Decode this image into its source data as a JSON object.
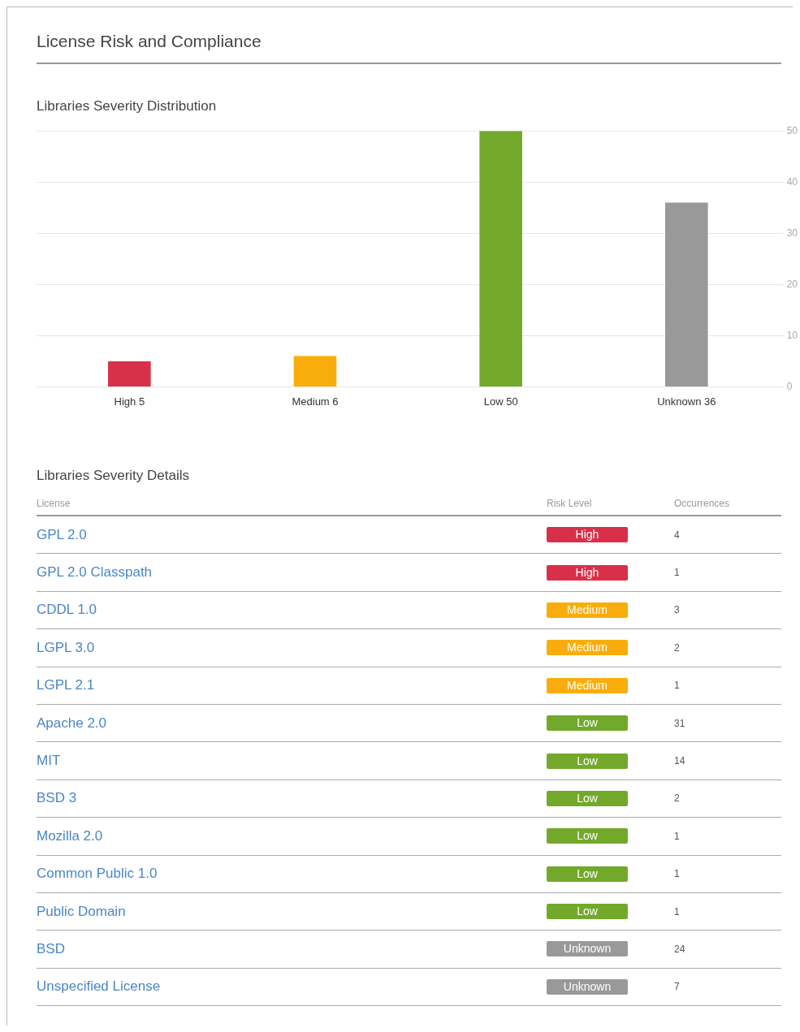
{
  "chart_data": [
    {
      "type": "bar",
      "title": "License Risk and Compliance",
      "subtitle": "Libraries Severity Distribution",
      "categories": [
        "High 5",
        "Medium 6",
        "Low 50",
        "Unknown 36"
      ],
      "values": [
        5,
        6,
        50,
        36
      ],
      "colors": [
        "#d9304a",
        "#f9ad0c",
        "#73a92b",
        "#999999"
      ],
      "ylim": [
        0,
        50
      ],
      "yticks": [
        0,
        10,
        20,
        30,
        40,
        50
      ],
      "grid": "y",
      "legend": false
    },
    {
      "type": "other",
      "title": "Libraries Severity Details",
      "annotations": [
        "License",
        "Risk Level",
        "Occurrences"
      ],
      "categories": [
        "GPL 2.0",
        "GPL 2.0 Classpath",
        "CDDL 1.0",
        "LGPL 3.0",
        "LGPL 2.1",
        "Apache 2.0",
        "MIT",
        "BSD 3",
        "Mozilla 2.0",
        "Common Public 1.0",
        "Public Domain",
        "BSD",
        "Unspecified License"
      ],
      "cell_labels": [
        "High",
        "High",
        "Medium",
        "Medium",
        "Medium",
        "Low",
        "Low",
        "Low",
        "Low",
        "Low",
        "Low",
        "Unknown",
        "Unknown"
      ],
      "colors": [
        "#d9304a",
        "#d9304a",
        "#f9ad0c",
        "#f9ad0c",
        "#f9ad0c",
        "#73a92b",
        "#73a92b",
        "#73a92b",
        "#73a92b",
        "#73a92b",
        "#73a92b",
        "#999999",
        "#999999"
      ],
      "values": [
        4,
        1,
        3,
        2,
        1,
        31,
        14,
        2,
        1,
        1,
        1,
        24,
        7
      ],
      "data_labels": true
    }
  ]
}
